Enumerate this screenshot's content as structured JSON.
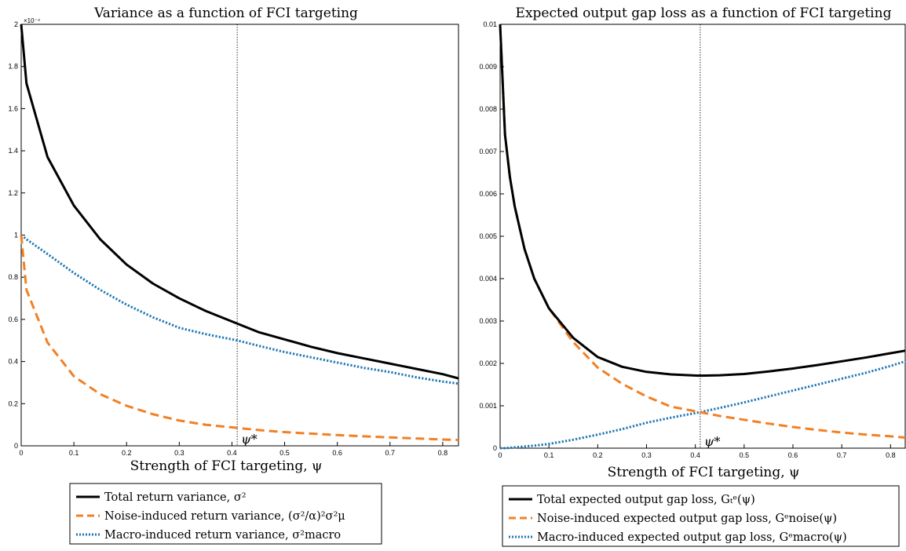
{
  "chart_data": [
    {
      "type": "line",
      "title": "Variance as a function of FCI targeting",
      "xlabel": "Strength of FCI targeting, ψ",
      "ylabel": "",
      "xlim": [
        0,
        0.83
      ],
      "ylim": [
        0,
        2
      ],
      "y_exponent_label": "×10⁻⁴",
      "xticks": [
        "0",
        "0.1",
        "0.2",
        "0.3",
        "0.4",
        "0.5",
        "0.6",
        "0.7",
        "0.8"
      ],
      "yticks": [
        "0",
        "0.2",
        "0.4",
        "0.6",
        "0.8",
        "1",
        "1.2",
        "1.4",
        "1.6",
        "1.8",
        "2"
      ],
      "vline": {
        "x": 0.41,
        "label": "ψ*"
      },
      "x": [
        0,
        0.01,
        0.05,
        0.1,
        0.15,
        0.2,
        0.25,
        0.3,
        0.35,
        0.41,
        0.45,
        0.5,
        0.55,
        0.6,
        0.65,
        0.7,
        0.75,
        0.8,
        0.83
      ],
      "series": [
        {
          "name": "Total return variance, σ²",
          "color": "#000000",
          "style": "solid",
          "values": [
            2.0,
            1.72,
            1.37,
            1.14,
            0.98,
            0.86,
            0.77,
            0.7,
            0.64,
            0.58,
            0.54,
            0.505,
            0.47,
            0.44,
            0.415,
            0.39,
            0.365,
            0.34,
            0.32
          ]
        },
        {
          "name": "Noise-induced return variance, (σ²/α)²σ²μ",
          "color": "#F28023",
          "style": "dashed",
          "values": [
            1.0,
            0.74,
            0.49,
            0.33,
            0.245,
            0.19,
            0.15,
            0.12,
            0.1,
            0.085,
            0.075,
            0.065,
            0.058,
            0.051,
            0.045,
            0.04,
            0.035,
            0.03,
            0.028
          ]
        },
        {
          "name": "Macro-induced return variance, σ²macro",
          "color": "#1F77B4",
          "style": "dotted",
          "values": [
            1.0,
            0.98,
            0.91,
            0.82,
            0.74,
            0.67,
            0.61,
            0.56,
            0.53,
            0.5,
            0.475,
            0.445,
            0.42,
            0.395,
            0.37,
            0.35,
            0.325,
            0.305,
            0.295
          ]
        }
      ],
      "legend": {
        "placement": "below",
        "entries": [
          {
            "text": "Total return variance, σ²"
          },
          {
            "text": "Noise-induced return variance, (σ²/α)²σ²μ"
          },
          {
            "text": "Macro-induced return variance, σ²macro"
          }
        ]
      }
    },
    {
      "type": "line",
      "title": "Expected output gap loss as a function of FCI targeting",
      "xlabel": "Strength of FCI targeting, ψ",
      "ylabel": "",
      "xlim": [
        0,
        0.83
      ],
      "ylim": [
        0,
        0.01
      ],
      "xticks": [
        "0",
        "0.1",
        "0.2",
        "0.3",
        "0.4",
        "0.5",
        "0.6",
        "0.7",
        "0.8"
      ],
      "yticks": [
        "0",
        "0.001",
        "0.002",
        "0.003",
        "0.004",
        "0.005",
        "0.006",
        "0.007",
        "0.008",
        "0.009",
        "0.01"
      ],
      "vline": {
        "x": 0.41,
        "label": "ψ*"
      },
      "x": [
        0,
        0.01,
        0.02,
        0.03,
        0.05,
        0.07,
        0.1,
        0.15,
        0.2,
        0.25,
        0.3,
        0.35,
        0.41,
        0.45,
        0.5,
        0.55,
        0.6,
        0.65,
        0.7,
        0.75,
        0.8,
        0.83
      ],
      "series": [
        {
          "name": "Total expected output gap loss, Gₜᵉ(ψ)",
          "color": "#000000",
          "style": "solid",
          "values": [
            0.01,
            0.0074,
            0.0064,
            0.0057,
            0.0047,
            0.004,
            0.0033,
            0.0026,
            0.00215,
            0.00192,
            0.0018,
            0.00174,
            0.00171,
            0.00172,
            0.00175,
            0.00181,
            0.00188,
            0.00196,
            0.00205,
            0.00214,
            0.00224,
            0.0023
          ]
        },
        {
          "name": "Noise-induced expected output gap loss, Gᵉnoise(ψ)",
          "color": "#F28023",
          "style": "dashed",
          "values": [
            0.01,
            0.0074,
            0.0064,
            0.0057,
            0.0047,
            0.004,
            0.0033,
            0.0025,
            0.0019,
            0.00152,
            0.00122,
            0.00098,
            0.00085,
            0.00076,
            0.00067,
            0.00058,
            0.0005,
            0.00043,
            0.00037,
            0.00032,
            0.00028,
            0.00025
          ]
        },
        {
          "name": "Macro-induced expected output gap loss, Gᵉmacro(ψ)",
          "color": "#1F77B4",
          "style": "dotted",
          "values": [
            0.0,
            0.0,
            1e-05,
            2e-05,
            4e-05,
            6e-05,
            0.0001,
            0.0002,
            0.00032,
            0.00045,
            0.0006,
            0.00072,
            0.00085,
            0.00095,
            0.00108,
            0.00122,
            0.00136,
            0.0015,
            0.00164,
            0.00178,
            0.00194,
            0.00205
          ]
        }
      ],
      "legend": {
        "placement": "below",
        "entries": [
          {
            "text": "Total expected output gap loss, Gₜᵉ(ψ)"
          },
          {
            "text": "Noise-induced expected output gap loss, Gᵉnoise(ψ)"
          },
          {
            "text": "Macro-induced expected output gap loss, Gᵉmacro(ψ)"
          }
        ]
      }
    }
  ]
}
